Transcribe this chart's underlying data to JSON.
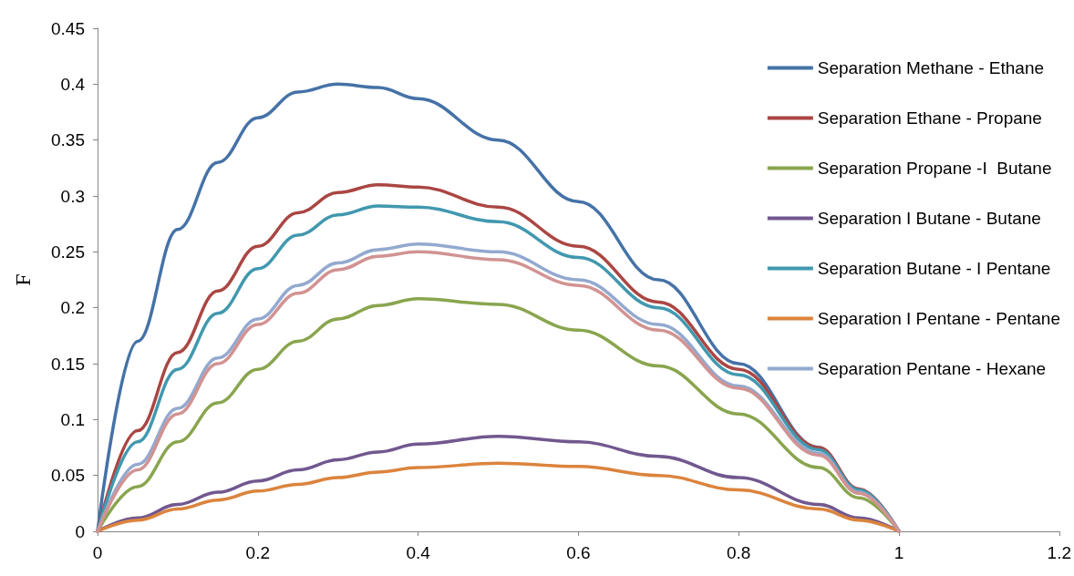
{
  "chart_data": {
    "type": "line",
    "ylabel": "F",
    "x": [
      0,
      0.05,
      0.1,
      0.15,
      0.2,
      0.25,
      0.3,
      0.35,
      0.4,
      0.5,
      0.6,
      0.7,
      0.8,
      0.9,
      0.95,
      1
    ],
    "xlim": [
      0,
      1.2
    ],
    "xticks": [
      0,
      0.2,
      0.4,
      0.6,
      0.8,
      1,
      1.2
    ],
    "ylim": [
      0,
      0.45
    ],
    "yticks": [
      0,
      0.05,
      0.1,
      0.15,
      0.2,
      0.25,
      0.3,
      0.35,
      0.4,
      0.45
    ],
    "grid": false,
    "legend": "right",
    "marker": "none",
    "line_style": "solid",
    "series": [
      {
        "name": "Separation Methane - Ethane",
        "color": "#4572a7",
        "values": [
          0,
          0.17,
          0.27,
          0.33,
          0.37,
          0.393,
          0.4,
          0.397,
          0.387,
          0.35,
          0.295,
          0.225,
          0.15,
          0.075,
          0.037,
          0
        ]
      },
      {
        "name": "Separation Ethane - Propane",
        "color": "#aa4643",
        "values": [
          0,
          0.09,
          0.16,
          0.215,
          0.255,
          0.285,
          0.303,
          0.31,
          0.308,
          0.29,
          0.255,
          0.205,
          0.145,
          0.075,
          0.038,
          0
        ]
      },
      {
        "name": "Separation Propane -I  Butane",
        "color": "#89a54e",
        "values": [
          0,
          0.04,
          0.08,
          0.115,
          0.145,
          0.17,
          0.19,
          0.202,
          0.208,
          0.203,
          0.18,
          0.148,
          0.105,
          0.057,
          0.03,
          0
        ]
      },
      {
        "name": "Separation I Butane - Butane",
        "color": "#71588f",
        "values": [
          0,
          0.012,
          0.024,
          0.035,
          0.045,
          0.055,
          0.064,
          0.071,
          0.078,
          0.085,
          0.08,
          0.067,
          0.048,
          0.024,
          0.012,
          0
        ]
      },
      {
        "name": "Separation Butane - I Pentane",
        "color": "#4198af",
        "values": [
          0,
          0.08,
          0.145,
          0.195,
          0.235,
          0.265,
          0.283,
          0.291,
          0.29,
          0.277,
          0.245,
          0.2,
          0.14,
          0.073,
          0.037,
          0
        ]
      },
      {
        "name": "Separation I Pentane - Pentane",
        "color": "#db843d",
        "values": [
          0,
          0.01,
          0.02,
          0.028,
          0.036,
          0.042,
          0.048,
          0.053,
          0.057,
          0.061,
          0.058,
          0.05,
          0.037,
          0.02,
          0.01,
          0
        ]
      },
      {
        "name": "Separation Pentane - Hexane",
        "color": "#93a9cf",
        "values": [
          0,
          0.06,
          0.11,
          0.155,
          0.19,
          0.22,
          0.24,
          0.252,
          0.257,
          0.25,
          0.225,
          0.185,
          0.13,
          0.07,
          0.035,
          0
        ]
      },
      {
        "color": "#d19392",
        "values": [
          0,
          0.055,
          0.105,
          0.15,
          0.185,
          0.213,
          0.234,
          0.246,
          0.25,
          0.243,
          0.22,
          0.18,
          0.128,
          0.068,
          0.034,
          0
        ]
      }
    ]
  }
}
